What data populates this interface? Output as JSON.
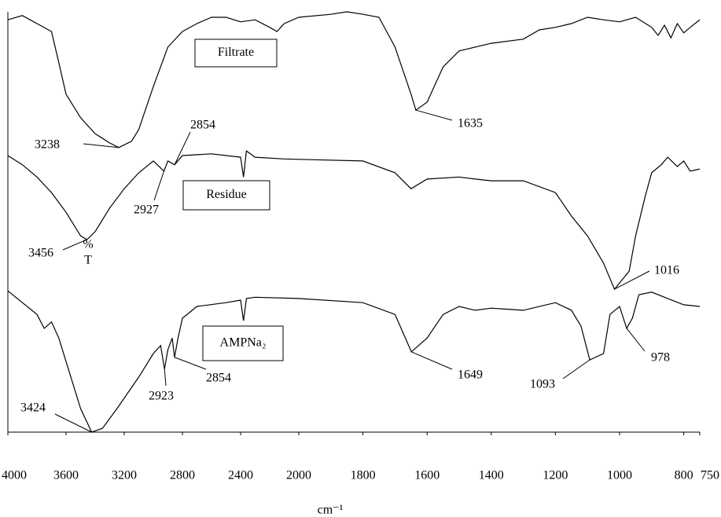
{
  "chart_data": {
    "type": "line",
    "x_label": "cm⁻¹",
    "y_label": [
      "%",
      "T"
    ],
    "xlim": [
      4000,
      750
    ],
    "x_break": 2000,
    "ylim": [
      0,
      100
    ],
    "xticks": [
      4000,
      3600,
      3200,
      2800,
      2400,
      2000,
      1800,
      1600,
      1400,
      1200,
      1000,
      800,
      750
    ],
    "series": [
      {
        "name": "Filtrate",
        "color": "#000000",
        "x": [
          4000,
          3900,
          3800,
          3700,
          3650,
          3600,
          3500,
          3400,
          3300,
          3238,
          3150,
          3100,
          3000,
          2900,
          2800,
          2700,
          2600,
          2500,
          2400,
          2300,
          2200,
          2150,
          2100,
          2000,
          1900,
          1850,
          1800,
          1750,
          1700,
          1650,
          1635,
          1600,
          1550,
          1500,
          1400,
          1300,
          1250,
          1200,
          1150,
          1100,
          1050,
          1000,
          950,
          900,
          880,
          860,
          840,
          820,
          800,
          780,
          750
        ],
        "values": [
          98.1,
          99.1,
          97.2,
          95.3,
          87.9,
          80.4,
          74.8,
          71.0,
          68.8,
          67.7,
          69.2,
          72.0,
          82.2,
          91.6,
          95.3,
          97.2,
          98.7,
          98.7,
          97.6,
          98.1,
          96.3,
          95.3,
          97.2,
          98.7,
          99.4,
          100.0,
          99.4,
          98.7,
          91.6,
          80.4,
          76.6,
          78.5,
          86.9,
          90.7,
          92.5,
          93.5,
          95.7,
          96.3,
          97.2,
          98.7,
          98.1,
          97.6,
          98.7,
          96.3,
          94.4,
          96.8,
          93.8,
          97.2,
          95.0,
          96.3,
          98.1
        ],
        "peaks": [
          3238,
          1635
        ]
      },
      {
        "name": "Residue",
        "color": "#000000",
        "x": [
          4000,
          3900,
          3800,
          3700,
          3600,
          3500,
          3456,
          3400,
          3300,
          3200,
          3100,
          3000,
          2927,
          2900,
          2854,
          2800,
          2600,
          2400,
          2380,
          2360,
          2300,
          2100,
          2000,
          1800,
          1700,
          1650,
          1600,
          1500,
          1450,
          1400,
          1300,
          1200,
          1150,
          1100,
          1050,
          1016,
          1000,
          970,
          950,
          920,
          900,
          870,
          850,
          820,
          800,
          780,
          750
        ],
        "values": [
          65.8,
          63.6,
          60.7,
          57.0,
          52.3,
          46.7,
          45.8,
          47.7,
          53.3,
          57.9,
          61.7,
          64.5,
          62.1,
          64.5,
          63.6,
          65.8,
          66.2,
          65.4,
          60.7,
          66.9,
          65.4,
          65.0,
          64.9,
          64.5,
          61.7,
          57.9,
          60.2,
          60.7,
          60.2,
          59.8,
          59.8,
          57.0,
          51.4,
          46.7,
          40.2,
          34.0,
          35.5,
          38.3,
          46.7,
          56.1,
          61.7,
          63.6,
          65.4,
          63.2,
          64.5,
          62.1,
          62.6
        ],
        "peaks": [
          3456,
          2927,
          2854,
          1016
        ]
      },
      {
        "name": "AMPNa₂",
        "color": "#000000",
        "x": [
          4000,
          3900,
          3800,
          3750,
          3700,
          3650,
          3600,
          3500,
          3424,
          3350,
          3250,
          3100,
          3000,
          2950,
          2923,
          2900,
          2870,
          2854,
          2830,
          2800,
          2700,
          2500,
          2400,
          2380,
          2360,
          2300,
          2000,
          1800,
          1700,
          1649,
          1600,
          1550,
          1500,
          1450,
          1400,
          1300,
          1200,
          1150,
          1120,
          1093,
          1050,
          1030,
          1000,
          978,
          960,
          940,
          900,
          850,
          800,
          750
        ],
        "values": [
          33.6,
          30.8,
          28.0,
          24.7,
          26.2,
          22.4,
          16.8,
          5.6,
          0.0,
          0.9,
          5.6,
          13.1,
          18.7,
          20.6,
          15.0,
          19.6,
          22.4,
          17.8,
          22.4,
          27.1,
          29.9,
          30.8,
          31.4,
          26.5,
          31.8,
          32.1,
          31.8,
          30.8,
          28.0,
          19.1,
          22.4,
          28.0,
          29.9,
          29.0,
          29.5,
          29.0,
          30.8,
          29.0,
          25.2,
          17.2,
          18.7,
          28.0,
          29.9,
          24.7,
          27.1,
          32.7,
          33.3,
          31.8,
          30.3,
          29.9
        ],
        "peaks": [
          3424,
          2923,
          2854,
          1649,
          1093,
          978
        ]
      }
    ]
  }
}
